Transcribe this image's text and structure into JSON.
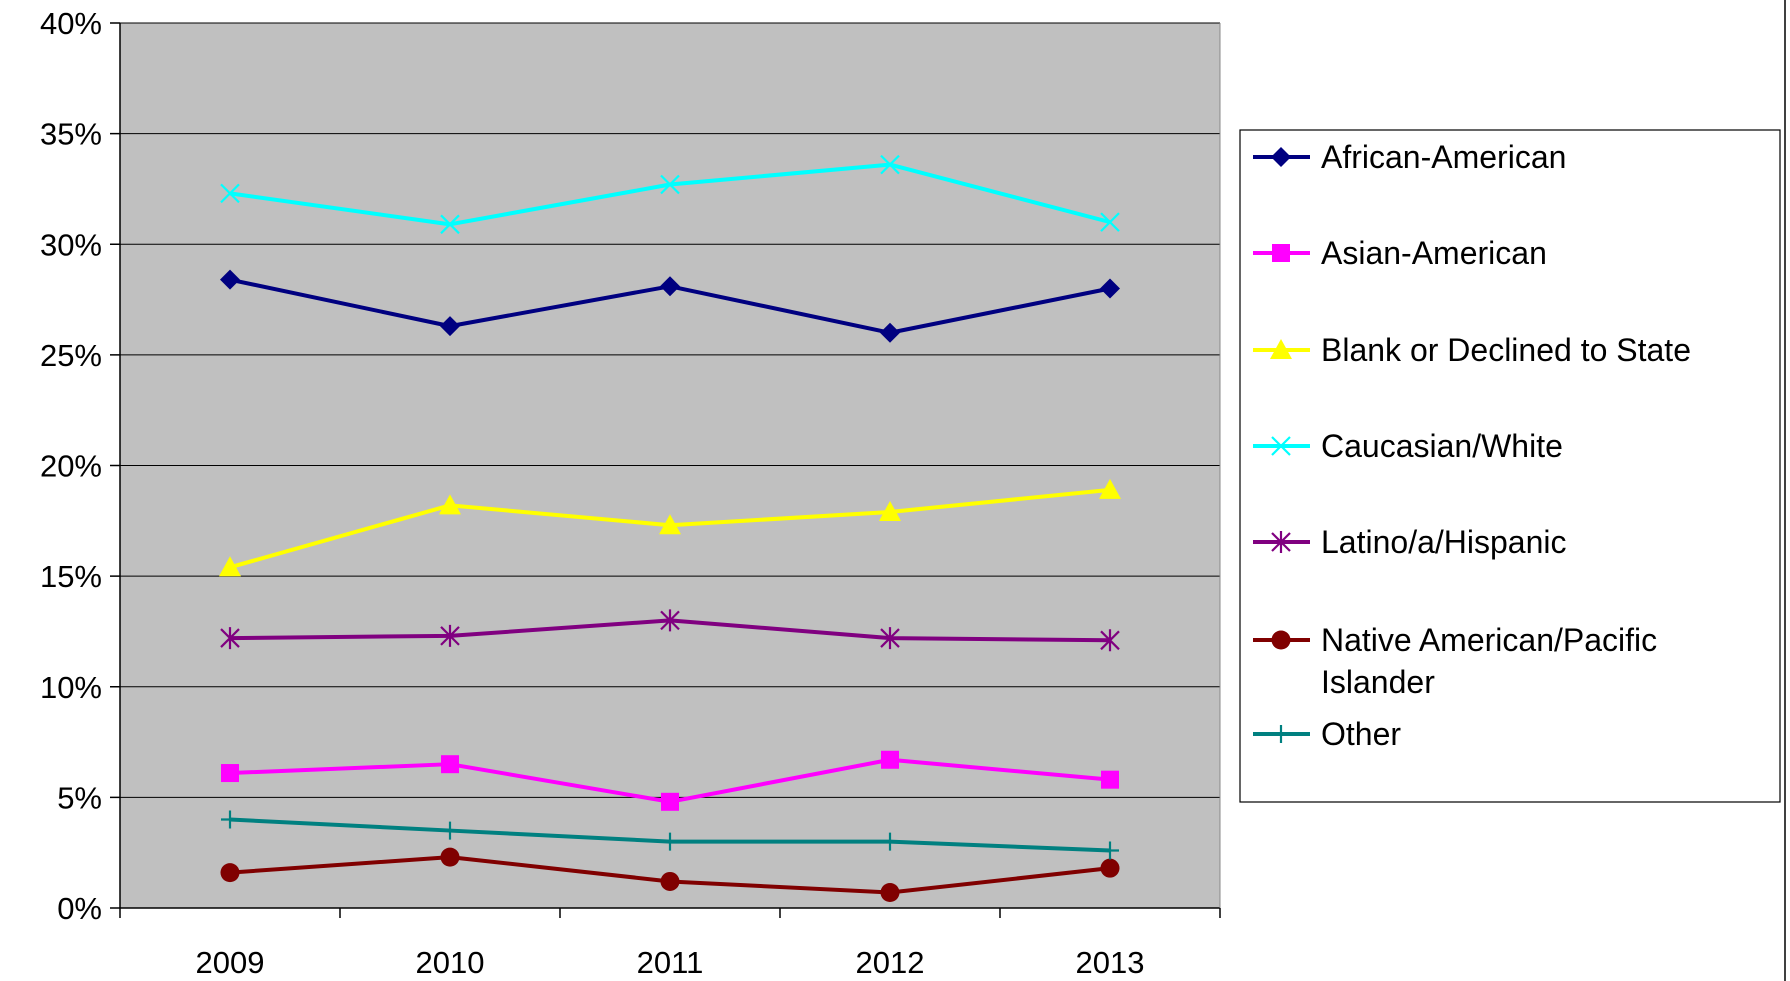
{
  "chart_data": {
    "type": "line",
    "title": "",
    "xlabel": "",
    "ylabel": "",
    "x": [
      "2009",
      "2010",
      "2011",
      "2012",
      "2013"
    ],
    "ylim": [
      0,
      40
    ],
    "y_ticks": [
      "0%",
      "5%",
      "10%",
      "15%",
      "20%",
      "25%",
      "30%",
      "35%",
      "40%"
    ],
    "grid": "horizontal",
    "legend_position": "right",
    "plot_background": "#c0c0c0",
    "series": [
      {
        "name": "African-American",
        "color": "#000080",
        "marker": "diamond",
        "values": [
          28.4,
          26.3,
          28.1,
          26.0,
          28.0
        ]
      },
      {
        "name": "Asian-American",
        "color": "#ff00ff",
        "marker": "square",
        "values": [
          6.1,
          6.5,
          4.8,
          6.7,
          5.8
        ]
      },
      {
        "name": "Blank or Declined to State",
        "color": "#ffff00",
        "marker": "triangle",
        "values": [
          15.4,
          18.2,
          17.3,
          17.9,
          18.9
        ]
      },
      {
        "name": "Caucasian/White",
        "color": "#00ffff",
        "marker": "x",
        "values": [
          32.3,
          30.9,
          32.7,
          33.6,
          31.0
        ]
      },
      {
        "name": "Latino/a/Hispanic",
        "color": "#800080",
        "marker": "star",
        "values": [
          12.2,
          12.3,
          13.0,
          12.2,
          12.1
        ]
      },
      {
        "name": "Native American/Pacific Islander",
        "name_lines": [
          "Native American/Pacific",
          "Islander"
        ],
        "color": "#800000",
        "marker": "circle",
        "values": [
          1.6,
          2.3,
          1.2,
          0.7,
          1.8
        ]
      },
      {
        "name": "Other",
        "color": "#008080",
        "marker": "plus",
        "values": [
          4.0,
          3.5,
          3.0,
          3.0,
          2.6
        ]
      }
    ]
  }
}
